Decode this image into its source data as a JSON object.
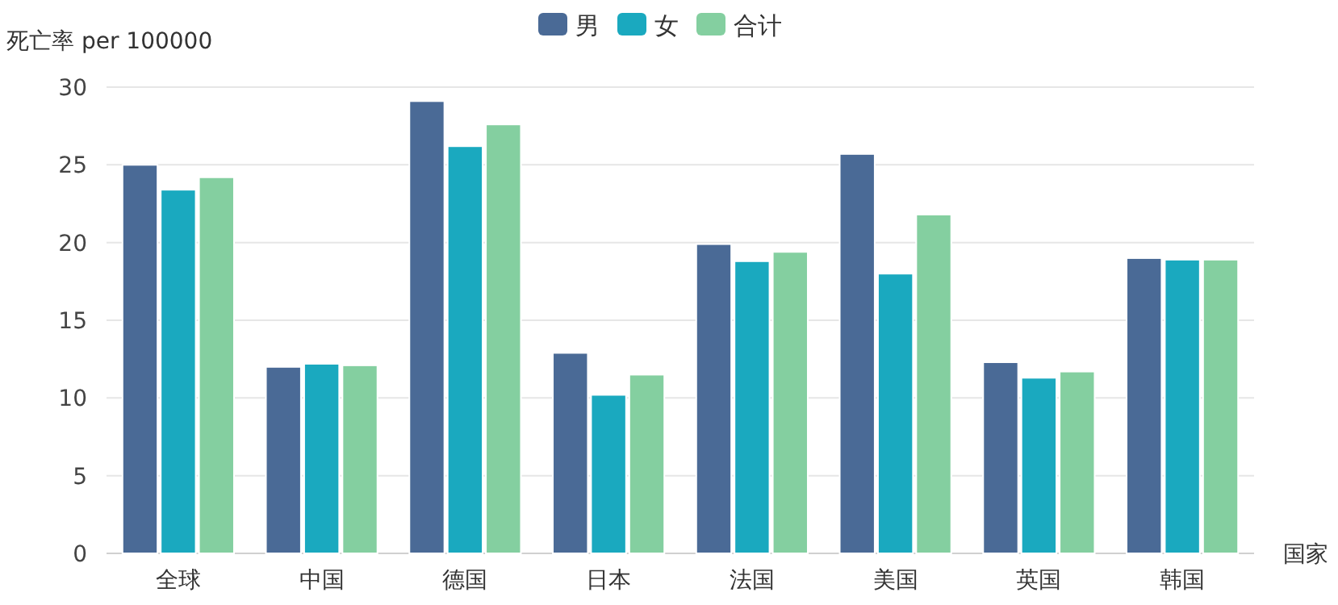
{
  "chart_data": {
    "type": "bar",
    "ylabel": "死亡率 per 100000",
    "xlabel": "国家",
    "categories": [
      "全球",
      "中国",
      "德国",
      "日本",
      "法国",
      "美国",
      "英国",
      "韩国"
    ],
    "series": [
      {
        "name": "男",
        "color": "#4a6a96",
        "values": [
          25.0,
          12.0,
          29.1,
          12.9,
          19.9,
          25.7,
          12.3,
          19.0
        ]
      },
      {
        "name": "女",
        "color": "#1aa9bf",
        "values": [
          23.4,
          12.2,
          26.2,
          10.2,
          18.8,
          18.0,
          11.3,
          18.9
        ]
      },
      {
        "name": "合计",
        "color": "#84cfa0",
        "values": [
          24.2,
          12.1,
          27.6,
          11.5,
          19.4,
          21.8,
          11.7,
          18.9
        ]
      }
    ],
    "ylim": [
      0,
      30
    ],
    "yticks": [
      0,
      5,
      10,
      15,
      20,
      25,
      30
    ],
    "grid": "y",
    "legend": "top"
  }
}
